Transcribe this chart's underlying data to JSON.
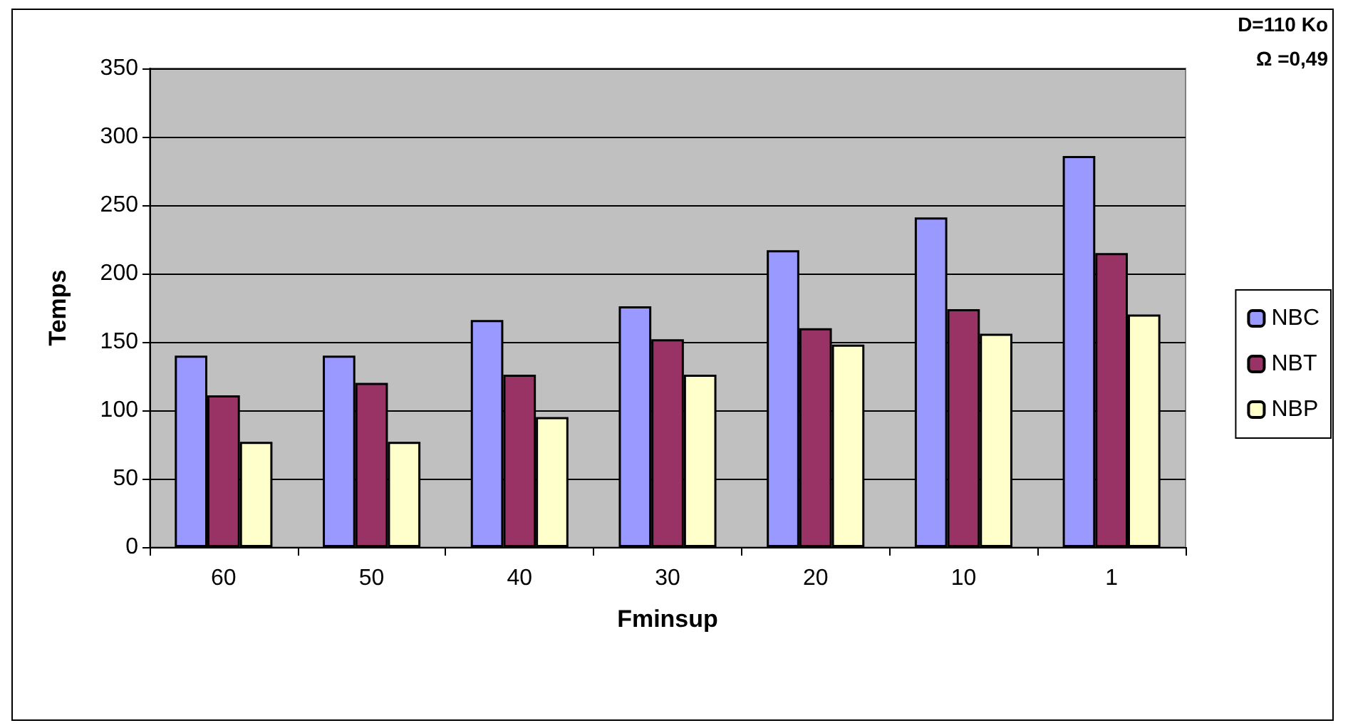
{
  "chart_data": {
    "type": "bar",
    "xlabel": "Fminsup",
    "ylabel": "Temps",
    "categories": [
      "60",
      "50",
      "40",
      "30",
      "20",
      "10",
      "1"
    ],
    "series": [
      {
        "name": "NBC",
        "color": "#9999ff",
        "values": [
          140,
          140,
          166,
          176,
          217,
          241,
          286
        ]
      },
      {
        "name": "NBT",
        "color": "#993366",
        "values": [
          111,
          120,
          126,
          152,
          160,
          174,
          215
        ]
      },
      {
        "name": "NBP",
        "color": "#ffffcc",
        "values": [
          77,
          77,
          95,
          126,
          148,
          156,
          170
        ]
      }
    ],
    "ylim": [
      0,
      350
    ],
    "yticks": [
      0,
      50,
      100,
      150,
      200,
      250,
      300,
      350
    ],
    "grid": "y",
    "legend": "right",
    "annotations": [
      "D=110 Ko",
      "Ω =0,49"
    ]
  }
}
